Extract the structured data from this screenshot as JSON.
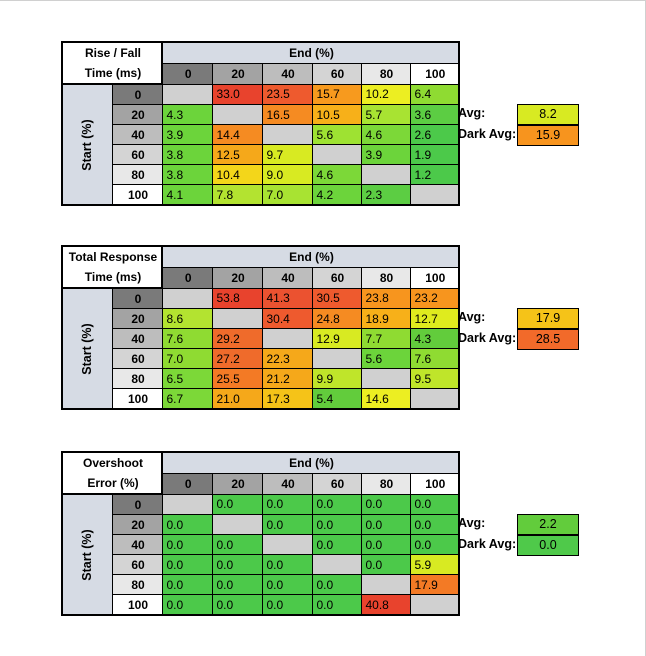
{
  "tables": [
    {
      "title_lines": [
        "Rise / Fall",
        "Time (ms)"
      ],
      "end_label": "End (%)",
      "start_label": "Start (%)",
      "col_headers": [
        "0",
        "20",
        "40",
        "60",
        "80",
        "100"
      ],
      "row_headers": [
        "0",
        "20",
        "40",
        "60",
        "80",
        "100"
      ],
      "cells": [
        [
          "",
          "33.0",
          "23.5",
          "15.7",
          "10.2",
          "6.4"
        ],
        [
          "4.3",
          "",
          "16.5",
          "10.5",
          "5.7",
          "3.6"
        ],
        [
          "3.9",
          "14.4",
          "",
          "5.6",
          "4.6",
          "2.6"
        ],
        [
          "3.8",
          "12.5",
          "9.7",
          "",
          "3.9",
          "1.9"
        ],
        [
          "3.8",
          "10.4",
          "9.0",
          "4.6",
          "",
          "1.2"
        ],
        [
          "4.1",
          "7.8",
          "7.0",
          "4.2",
          "2.3",
          ""
        ]
      ],
      "avg_label": "Avg:",
      "avg_value": "8.2",
      "dark_avg_label": "Dark Avg:",
      "dark_avg_value": "15.9",
      "avg_color": "#d8ea22",
      "dark_avg_color": "#f7941e"
    },
    {
      "title_lines": [
        "Total Response",
        "Time (ms)"
      ],
      "end_label": "End (%)",
      "start_label": "Start (%)",
      "col_headers": [
        "0",
        "20",
        "40",
        "60",
        "80",
        "100"
      ],
      "row_headers": [
        "0",
        "20",
        "40",
        "60",
        "80",
        "100"
      ],
      "cells": [
        [
          "",
          "53.8",
          "41.3",
          "30.5",
          "23.8",
          "23.2"
        ],
        [
          "8.6",
          "",
          "30.4",
          "24.8",
          "18.9",
          "12.7"
        ],
        [
          "7.6",
          "29.2",
          "",
          "12.9",
          "7.7",
          "4.3"
        ],
        [
          "7.0",
          "27.2",
          "22.3",
          "",
          "5.6",
          "7.6"
        ],
        [
          "6.5",
          "25.5",
          "21.2",
          "9.9",
          "",
          "9.5"
        ],
        [
          "6.7",
          "21.0",
          "17.3",
          "5.4",
          "14.6",
          ""
        ]
      ],
      "avg_label": "Avg:",
      "avg_value": "17.9",
      "dark_avg_label": "Dark Avg:",
      "dark_avg_value": "28.5",
      "avg_color": "#f5c318",
      "dark_avg_color": "#f26a2a"
    },
    {
      "title_lines": [
        "Overshoot",
        "Error (%)"
      ],
      "end_label": "End (%)",
      "start_label": "Start (%)",
      "col_headers": [
        "0",
        "20",
        "40",
        "60",
        "80",
        "100"
      ],
      "row_headers": [
        "0",
        "20",
        "40",
        "60",
        "80",
        "100"
      ],
      "cells": [
        [
          "",
          "0.0",
          "0.0",
          "0.0",
          "0.0",
          "0.0"
        ],
        [
          "0.0",
          "",
          "0.0",
          "0.0",
          "0.0",
          "0.0"
        ],
        [
          "0.0",
          "0.0",
          "",
          "0.0",
          "0.0",
          "0.0"
        ],
        [
          "0.0",
          "0.0",
          "0.0",
          "",
          "0.0",
          "5.9"
        ],
        [
          "0.0",
          "0.0",
          "0.0",
          "0.0",
          "",
          "17.9"
        ],
        [
          "0.0",
          "0.0",
          "0.0",
          "0.0",
          "40.8",
          ""
        ]
      ],
      "avg_label": "Avg:",
      "avg_value": "2.2",
      "dark_avg_label": "Dark Avg:",
      "dark_avg_value": "0.0",
      "avg_color": "#62cc3c",
      "dark_avg_color": "#4fc94a"
    }
  ],
  "cell_colors": [
    [
      [
        "",
        "#e8432d",
        "#ee5a2e",
        "#f79a1e",
        "#ecee22",
        "#8fdb32"
      ],
      [
        "#6cd43b",
        "",
        "#f58b22",
        "#f7b019",
        "#a8e332",
        "#5ccd43"
      ],
      [
        "#6cd43b",
        "#f58b22",
        "",
        "#9ee232",
        "#7cd838",
        "#4cc94a"
      ],
      [
        "#6cd43b",
        "#f5a81a",
        "#d8ea22",
        "",
        "#6cd43b",
        "#4cc94a"
      ],
      [
        "#6cd43b",
        "#f3d61a",
        "#d8ea22",
        "#7cd838",
        "",
        "#4cc94a"
      ],
      [
        "#6cd43b",
        "#b3e330",
        "#a8e332",
        "#6cd43b",
        "#5ccd43",
        ""
      ]
    ],
    [
      [
        "",
        "#e8432d",
        "#eb5230",
        "#ee5a2e",
        "#f7951e",
        "#f7951e"
      ],
      [
        "#b3e330",
        "",
        "#ee5a2e",
        "#f58b22",
        "#f7b019",
        "#dfeb1e"
      ],
      [
        "#8fdb32",
        "#ef6b2b",
        "",
        "#d8ea22",
        "#8fdb32",
        "#62cc3c"
      ],
      [
        "#8fdb32",
        "#ef6b2b",
        "#f5a81a",
        "",
        "#6cd43b",
        "#8fdb32"
      ],
      [
        "#7cd838",
        "#f37a25",
        "#f5a81a",
        "#bfe52a",
        "",
        "#bfe52a"
      ],
      [
        "#7cd838",
        "#f5a81a",
        "#f5c318",
        "#62cc3c",
        "#ecee22",
        ""
      ]
    ],
    [
      [
        "",
        "#4cc94a",
        "#4cc94a",
        "#4cc94a",
        "#4cc94a",
        "#4cc94a"
      ],
      [
        "#4cc94a",
        "",
        "#4cc94a",
        "#4cc94a",
        "#4cc94a",
        "#4cc94a"
      ],
      [
        "#4cc94a",
        "#4cc94a",
        "",
        "#4cc94a",
        "#4cc94a",
        "#4cc94a"
      ],
      [
        "#4cc94a",
        "#4cc94a",
        "#4cc94a",
        "",
        "#4cc94a",
        "#d8ea22"
      ],
      [
        "#4cc94a",
        "#4cc94a",
        "#4cc94a",
        "#4cc94a",
        "",
        "#f37a25"
      ],
      [
        "#4cc94a",
        "#4cc94a",
        "#4cc94a",
        "#4cc94a",
        "#e8432d",
        ""
      ]
    ]
  ],
  "col_header_colors": [
    "#7a7a7a",
    "#a3a3a3",
    "#bdbdbd",
    "#d4d4d4",
    "#e8e8e8",
    "#ffffff"
  ],
  "row_header_colors": [
    "#7a7a7a",
    "#a3a3a3",
    "#bdbdbd",
    "#d4d4d4",
    "#e8e8e8",
    "#ffffff"
  ]
}
